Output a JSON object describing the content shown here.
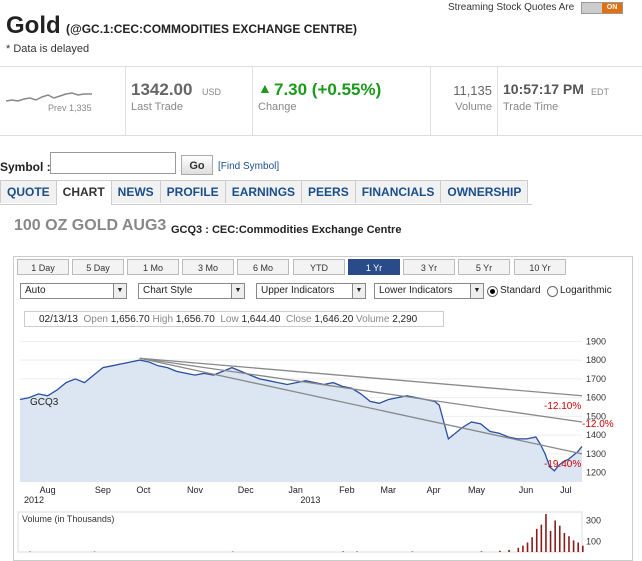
{
  "header": {
    "title": "Gold",
    "subtitle": "(@GC.1:CEC:COMMODITIES EXCHANGE CENTRE)",
    "delayed": "* Data is delayed",
    "streaming_label": "Streaming Stock Quotes Are",
    "toggle_state": "ON"
  },
  "quote": {
    "spark_label": "Prev 1,335",
    "last_trade": "1342.00",
    "currency": "USD",
    "last_trade_label": "Last Trade",
    "change": "7.30 (+0.55%)",
    "change_label": "Change",
    "volume": "11,135",
    "volume_label": "Volume",
    "trade_time": "10:57:17 PM",
    "tz": "EDT",
    "trade_time_label": "Trade Time"
  },
  "symbol": {
    "label": "Symbol :",
    "value": "",
    "go": "Go",
    "find": "[Find Symbol]"
  },
  "tabs": [
    {
      "label": "QUOTE",
      "active": false
    },
    {
      "label": "CHART",
      "active": true
    },
    {
      "label": "NEWS",
      "active": false
    },
    {
      "label": "PROFILE",
      "active": false
    },
    {
      "label": "EARNINGS",
      "active": false
    },
    {
      "label": "PEERS",
      "active": false
    },
    {
      "label": "FINANCIALS",
      "active": false
    },
    {
      "label": "OWNERSHIP",
      "active": false
    }
  ],
  "chart_title": "100 OZ GOLD AUG3",
  "chart_subtitle": "GCQ3 : CEC:Commodities Exchange Centre",
  "ranges": [
    "1 Day",
    "5 Day",
    "1 Mo",
    "3 Mo",
    "6 Mo",
    "YTD",
    "1 Yr",
    "3 Yr",
    "5 Yr",
    "10 Yr"
  ],
  "selected_range": "1 Yr",
  "controls": {
    "dd1": "Auto",
    "dd2": "Chart Style",
    "dd3": "Upper Indicators",
    "dd4": "Lower Indicators",
    "scale_standard": "Standard",
    "scale_log": "Logarithmic"
  },
  "info": {
    "date": "02/13/13",
    "open_label": "Open",
    "open": "1,656.70",
    "high_label": "High",
    "high": "1,656.70",
    "low_label": "Low",
    "low": "1,644.40",
    "close_label": "Close",
    "close": "1,646.20",
    "volume_label": "Volume",
    "volume": "2,290"
  },
  "colors": {
    "price_line": "#2a4fa0",
    "area_fill": "#dbe6f2",
    "trend": "#888888",
    "pct": "#cc0000",
    "volume": "#8b1a1a",
    "up": "#1a9a1a"
  },
  "chart_data": {
    "type": "area",
    "series_label": "GCQ3",
    "y_ticks": [
      1900,
      1800,
      1700,
      1600,
      1500,
      1400,
      1300,
      1200
    ],
    "ylim": [
      1150,
      1950
    ],
    "x_labels": [
      "Aug",
      "Sep",
      "Oct",
      "Nov",
      "Dec",
      "Jan",
      "Feb",
      "Mar",
      "Apr",
      "May",
      "Jun",
      "Jul"
    ],
    "x_label_t": [
      0.06,
      0.18,
      0.27,
      0.38,
      0.49,
      0.6,
      0.71,
      0.8,
      0.9,
      0.99,
      1.1,
      1.19
    ],
    "year_labels": [
      {
        "text": "2012",
        "t": 0.0
      },
      {
        "text": "2013",
        "t": 0.6
      }
    ],
    "price": [
      [
        0.0,
        1590
      ],
      [
        0.02,
        1600
      ],
      [
        0.04,
        1620
      ],
      [
        0.06,
        1610
      ],
      [
        0.08,
        1640
      ],
      [
        0.1,
        1680
      ],
      [
        0.12,
        1700
      ],
      [
        0.14,
        1680
      ],
      [
        0.16,
        1720
      ],
      [
        0.18,
        1760
      ],
      [
        0.2,
        1770
      ],
      [
        0.22,
        1780
      ],
      [
        0.24,
        1790
      ],
      [
        0.26,
        1800
      ],
      [
        0.28,
        1790
      ],
      [
        0.3,
        1770
      ],
      [
        0.32,
        1760
      ],
      [
        0.34,
        1740
      ],
      [
        0.36,
        1730
      ],
      [
        0.38,
        1720
      ],
      [
        0.4,
        1730
      ],
      [
        0.42,
        1720
      ],
      [
        0.44,
        1740
      ],
      [
        0.46,
        1760
      ],
      [
        0.48,
        1740
      ],
      [
        0.5,
        1720
      ],
      [
        0.52,
        1700
      ],
      [
        0.54,
        1690
      ],
      [
        0.56,
        1680
      ],
      [
        0.58,
        1670
      ],
      [
        0.6,
        1680
      ],
      [
        0.62,
        1690
      ],
      [
        0.64,
        1680
      ],
      [
        0.66,
        1670
      ],
      [
        0.68,
        1680
      ],
      [
        0.7,
        1660
      ],
      [
        0.72,
        1650
      ],
      [
        0.74,
        1620
      ],
      [
        0.76,
        1580
      ],
      [
        0.78,
        1570
      ],
      [
        0.8,
        1590
      ],
      [
        0.82,
        1600
      ],
      [
        0.84,
        1610
      ],
      [
        0.86,
        1600
      ],
      [
        0.88,
        1590
      ],
      [
        0.9,
        1580
      ],
      [
        0.91,
        1560
      ],
      [
        0.92,
        1470
      ],
      [
        0.93,
        1380
      ],
      [
        0.94,
        1400
      ],
      [
        0.96,
        1440
      ],
      [
        0.98,
        1470
      ],
      [
        1.0,
        1460
      ],
      [
        1.02,
        1420
      ],
      [
        1.04,
        1410
      ],
      [
        1.06,
        1390
      ],
      [
        1.08,
        1380
      ],
      [
        1.1,
        1380
      ],
      [
        1.12,
        1390
      ],
      [
        1.13,
        1350
      ],
      [
        1.14,
        1300
      ],
      [
        1.15,
        1230
      ],
      [
        1.16,
        1210
      ],
      [
        1.17,
        1240
      ],
      [
        1.18,
        1260
      ],
      [
        1.19,
        1270
      ],
      [
        1.2,
        1290
      ],
      [
        1.21,
        1310
      ],
      [
        1.22,
        1340
      ]
    ],
    "trendlines": [
      {
        "from": [
          0.26,
          1810
        ],
        "to": [
          1.22,
          1610
        ],
        "label": "-12.10%"
      },
      {
        "from": [
          0.26,
          1810
        ],
        "to": [
          1.22,
          1470
        ],
        "label": "-12.0%"
      },
      {
        "from": [
          0.26,
          1810
        ],
        "to": [
          1.22,
          1300
        ],
        "label": "-19.40%"
      }
    ],
    "volume_label": "Volume (in Thousands)",
    "volume_ticks": [
      300,
      100
    ],
    "volume": [
      [
        0.02,
        4
      ],
      [
        0.16,
        4
      ],
      [
        0.46,
        4
      ],
      [
        0.7,
        6
      ],
      [
        0.73,
        5
      ],
      [
        0.85,
        5
      ],
      [
        1.0,
        6
      ],
      [
        1.04,
        12
      ],
      [
        1.06,
        20
      ],
      [
        1.08,
        40
      ],
      [
        1.09,
        60
      ],
      [
        1.1,
        90
      ],
      [
        1.11,
        140
      ],
      [
        1.12,
        220
      ],
      [
        1.13,
        260
      ],
      [
        1.14,
        360
      ],
      [
        1.15,
        200
      ],
      [
        1.16,
        300
      ],
      [
        1.17,
        250
      ],
      [
        1.18,
        180
      ],
      [
        1.19,
        150
      ],
      [
        1.2,
        110
      ],
      [
        1.21,
        90
      ],
      [
        1.22,
        60
      ]
    ]
  }
}
